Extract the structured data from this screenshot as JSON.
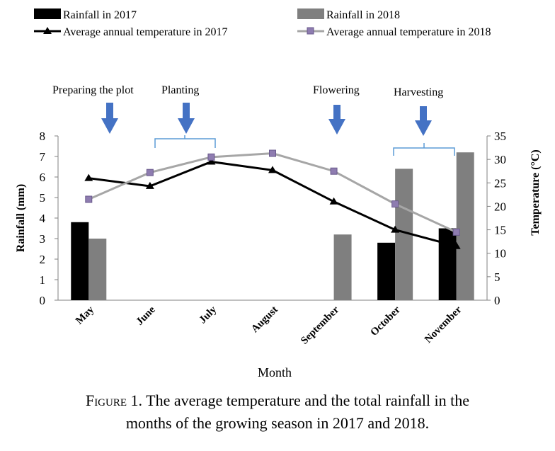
{
  "chart_data": {
    "type": "bar",
    "xlabel": "Month",
    "ylabel_left": "Rainfall (mm)",
    "ylabel_right": "Temperature (°C)",
    "ylim_left": [
      0,
      8
    ],
    "ylim_right": [
      0,
      35
    ],
    "yticks_left": [
      "0",
      "1",
      "2",
      "3",
      "4",
      "5",
      "6",
      "7",
      "8"
    ],
    "yticks_right": [
      "0",
      "5",
      "10",
      "15",
      "20",
      "25",
      "30",
      "35"
    ],
    "categories": [
      "May",
      "June",
      "July",
      "August",
      "September",
      "October",
      "November"
    ],
    "bar_series": [
      {
        "name": "Rainfall in 2017",
        "color": "#000000",
        "values": [
          3.8,
          0,
          0,
          0,
          0,
          2.8,
          3.5
        ]
      },
      {
        "name": "Rainfall in 2018",
        "color": "#7f7f7f",
        "values": [
          3.0,
          0,
          0,
          0,
          3.2,
          6.4,
          7.2
        ]
      }
    ],
    "line_series": [
      {
        "name": "Average annual temperature in 2017",
        "color": "#000000",
        "marker": "triangle",
        "values": [
          26,
          24.3,
          29.5,
          27.7,
          21,
          15,
          11.5
        ]
      },
      {
        "name": "Average annual temperature in 2018",
        "color": "#a6a6a6",
        "marker": "square",
        "values": [
          21.5,
          27.2,
          30.5,
          31.3,
          27.5,
          20.5,
          14.5
        ]
      }
    ],
    "stages": [
      {
        "label": "Preparing the plot",
        "month": "June"
      },
      {
        "label": "Planting",
        "months": [
          "June",
          "July"
        ]
      },
      {
        "label": "Flowering",
        "month": "September"
      },
      {
        "label": "Harvesting",
        "months": [
          "October",
          "November"
        ]
      }
    ],
    "legend": "top",
    "grid": false
  },
  "colors": {
    "arrow": "#4472c4",
    "bracket": "#5b9bd5",
    "axis": "#808080"
  },
  "caption": {
    "label": "Figure 1.",
    "text": "The average temperature and the total rainfall in the",
    "line2": "months of the growing season in 2017 and 2018."
  }
}
